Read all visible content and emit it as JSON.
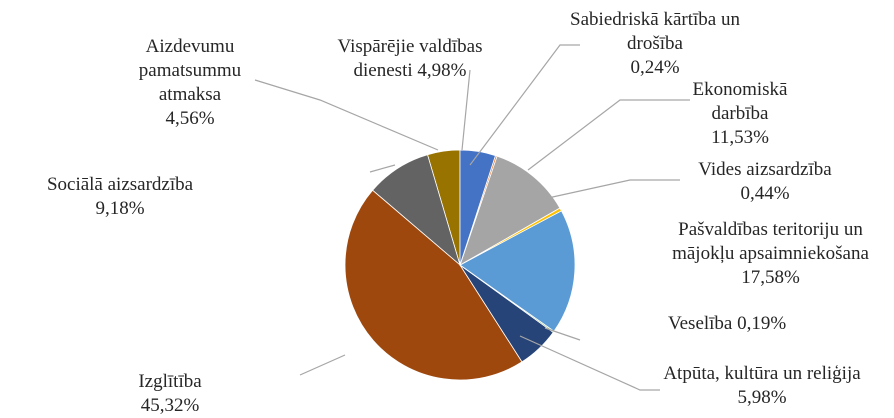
{
  "chart_data": {
    "type": "pie",
    "categories": [
      "Vispārējie valdības dienesti",
      "Sabiedriskā kārtība un drošība",
      "Ekonomiskā darbība",
      "Vides aizsardzība",
      "Pašvaldības teritoriju un mājokļu apsaimniekošana",
      "Veselība",
      "Atpūta, kultūra un reliģija",
      "Izglītība",
      "Sociālā aizsardzība",
      "Aizdevumu pamatsummu atmaksa"
    ],
    "values": [
      4.98,
      0.24,
      11.53,
      0.44,
      17.58,
      0.19,
      5.98,
      45.32,
      9.18,
      4.56
    ],
    "value_labels": [
      "4,98%",
      "0,24%",
      "11,53%",
      "0,44%",
      "17,58%",
      "0,19%",
      "5,98%",
      "45,32%",
      "9,18%",
      "4,56%"
    ],
    "colors": [
      "#4472c4",
      "#ed7d31",
      "#a5a5a5",
      "#ffc000",
      "#5b9bd5",
      "#70ad47",
      "#264478",
      "#9e480e",
      "#636363",
      "#997300"
    ]
  }
}
